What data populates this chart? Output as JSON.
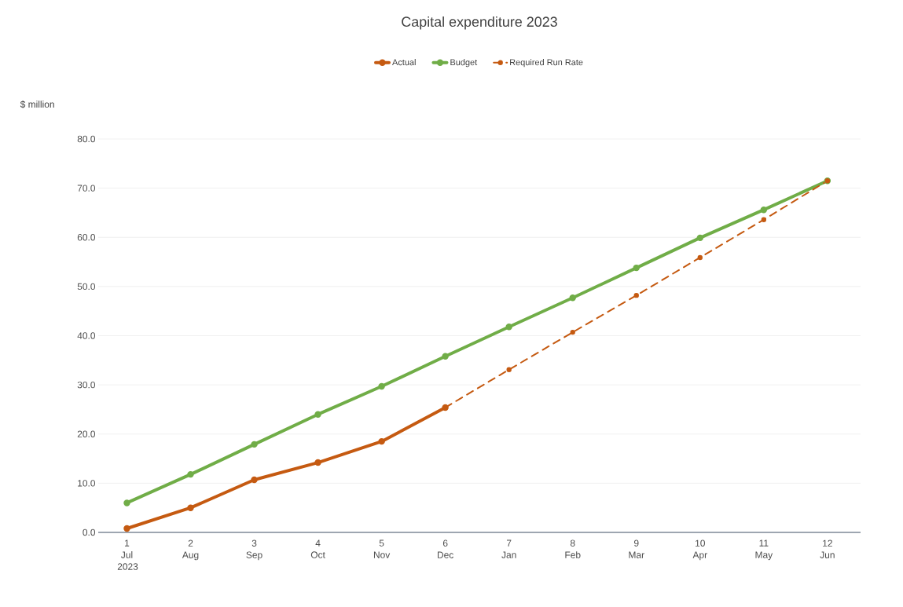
{
  "chart_data": {
    "type": "line",
    "title": "Capital expenditure 2023",
    "ylabel": "$ million",
    "categories": [
      "1 Jul 2023",
      "2 Aug",
      "3 Sep",
      "4 Oct",
      "5 Nov",
      "6 Dec",
      "7 Jan",
      "8 Feb",
      "9 Mar",
      "10 Apr",
      "11 May",
      "12 Jun"
    ],
    "series": [
      {
        "name": "Actual",
        "color": "#c55a11",
        "line_style": "solid",
        "values": [
          0.8,
          5.0,
          10.7,
          14.2,
          18.5,
          25.4,
          null,
          null,
          null,
          null,
          null,
          null
        ]
      },
      {
        "name": "Budget",
        "color": "#70ad47",
        "line_style": "solid",
        "values": [
          6.0,
          11.8,
          17.9,
          24.0,
          29.7,
          35.8,
          41.8,
          47.7,
          53.8,
          59.9,
          65.6,
          71.5
        ]
      },
      {
        "name": "Required Run Rate",
        "color": "#c55a11",
        "line_style": "dashed",
        "values": [
          null,
          null,
          null,
          null,
          null,
          25.4,
          33.1,
          40.7,
          48.2,
          55.9,
          63.6,
          71.5
        ]
      }
    ],
    "ylim": [
      0,
      80
    ],
    "yticks": [
      {
        "value": 0,
        "label": "0.0"
      },
      {
        "value": 10,
        "label": "10.0"
      },
      {
        "value": 20,
        "label": "20.0"
      },
      {
        "value": 30,
        "label": "30.0"
      },
      {
        "value": 40,
        "label": "40.0"
      },
      {
        "value": 50,
        "label": "50.0"
      },
      {
        "value": 60,
        "label": "60.0"
      },
      {
        "value": 70,
        "label": "70.0"
      },
      {
        "value": 80,
        "label": "80.0"
      }
    ],
    "grid": "y",
    "legend": "top",
    "marker": "circle"
  }
}
